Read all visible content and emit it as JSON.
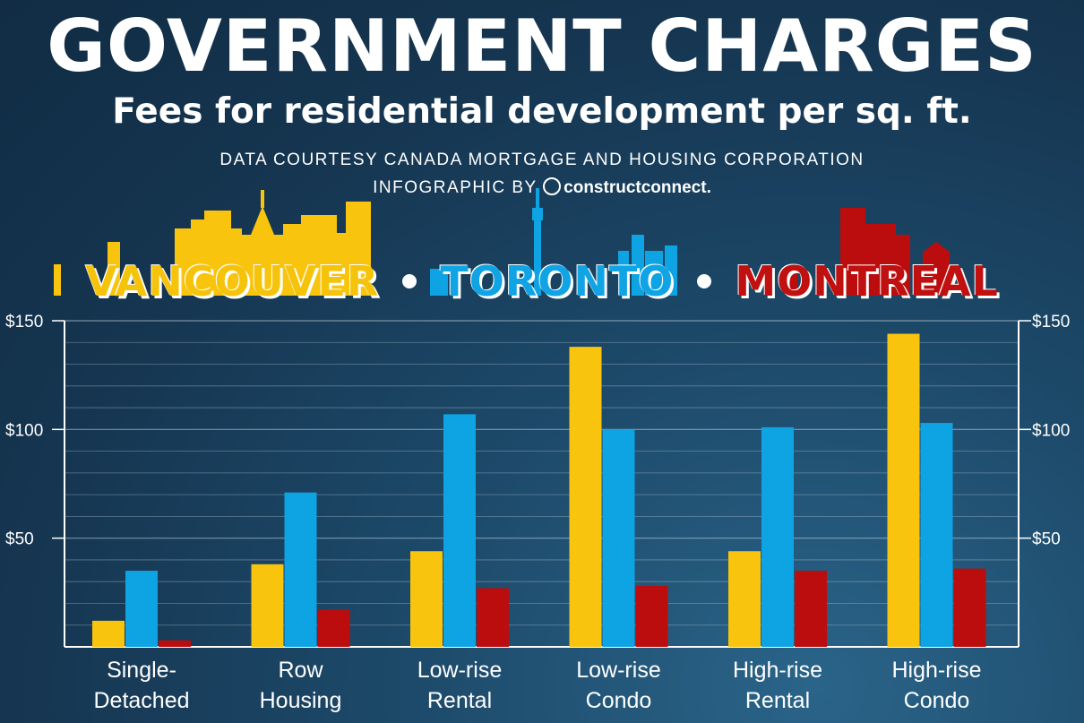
{
  "header": {
    "title": "GOVERNMENT CHARGES",
    "subtitle": "Fees for residential development per sq. ft.",
    "credit": "DATA COURTESY CANADA MORTGAGE AND HOUSING CORPORATION",
    "infographic_by": "INFOGRAPHIC BY",
    "brand_light": "construct",
    "brand_bold": "connect."
  },
  "cities": {
    "vancouver": "VANCOUVER",
    "toronto": "TORONTO",
    "montreal": "MONTREAL"
  },
  "colors": {
    "vancouver": "#f8c40d",
    "toronto": "#0ea3e3",
    "montreal": "#bb0d0d",
    "axis": "#ffffff",
    "grid": "#c9d6e2"
  },
  "chart_data": {
    "type": "bar",
    "categories": [
      [
        "Single-",
        "Detached"
      ],
      [
        "Row",
        "Housing"
      ],
      [
        "Low-rise",
        "Rental"
      ],
      [
        "Low-rise",
        "Condo"
      ],
      [
        "High-rise",
        "Rental"
      ],
      [
        "High-rise",
        "Condo"
      ]
    ],
    "series": [
      {
        "name": "VANCOUVER",
        "color": "#f8c40d",
        "values": [
          12,
          38,
          44,
          138,
          44,
          144
        ]
      },
      {
        "name": "TORONTO",
        "color": "#0ea3e3",
        "values": [
          35,
          71,
          107,
          100,
          101,
          103
        ]
      },
      {
        "name": "MONTREAL",
        "color": "#bb0d0d",
        "values": [
          3,
          17,
          27,
          28,
          35,
          36
        ]
      }
    ],
    "ylim": [
      0,
      150
    ],
    "yticks": [
      50,
      100,
      150
    ],
    "ytick_labels": [
      "$50",
      "$100",
      "$150"
    ],
    "minor_grid_step": 10,
    "grid": true,
    "axes_labels_both_sides": true,
    "xlabel": "",
    "ylabel": ""
  }
}
